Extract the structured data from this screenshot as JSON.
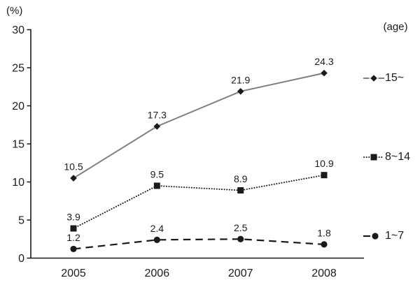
{
  "chart_data": {
    "type": "line",
    "title": "",
    "y_unit_label": "(%)",
    "legend_title": "(age)",
    "xlabel": "",
    "ylabel": "(%)",
    "categories": [
      "2005",
      "2006",
      "2007",
      "2008"
    ],
    "ylim": [
      0,
      30
    ],
    "yticks": [
      0,
      5,
      10,
      15,
      20,
      25,
      30
    ],
    "grid": false,
    "legend_position": "right",
    "data_labels": true,
    "series": [
      {
        "name": "15~",
        "values": [
          10.5,
          17.3,
          21.9,
          24.3
        ],
        "labels": [
          "10.5",
          "17.3",
          "21.9",
          "24.3"
        ],
        "line_style": "solid",
        "marker": "diamond",
        "line_color": "#7f7f7f",
        "marker_color": "#1a1a1a"
      },
      {
        "name": "8~14",
        "values": [
          3.9,
          9.5,
          8.9,
          10.9
        ],
        "labels": [
          "3.9",
          "9.5",
          "8.9",
          "10.9"
        ],
        "line_style": "dotted",
        "marker": "square",
        "line_color": "#1a1a1a",
        "marker_color": "#1a1a1a"
      },
      {
        "name": "1~7",
        "values": [
          1.2,
          2.4,
          2.5,
          1.8
        ],
        "labels": [
          "1.2",
          "2.4",
          "2.5",
          "1.8"
        ],
        "line_style": "dashed",
        "marker": "circle",
        "line_color": "#1a1a1a",
        "marker_color": "#1a1a1a"
      }
    ],
    "colors": {
      "axis": "#1a1a1a",
      "text": "#1a1a1a",
      "background": "#ffffff",
      "gray_line": "#7f7f7f"
    }
  }
}
